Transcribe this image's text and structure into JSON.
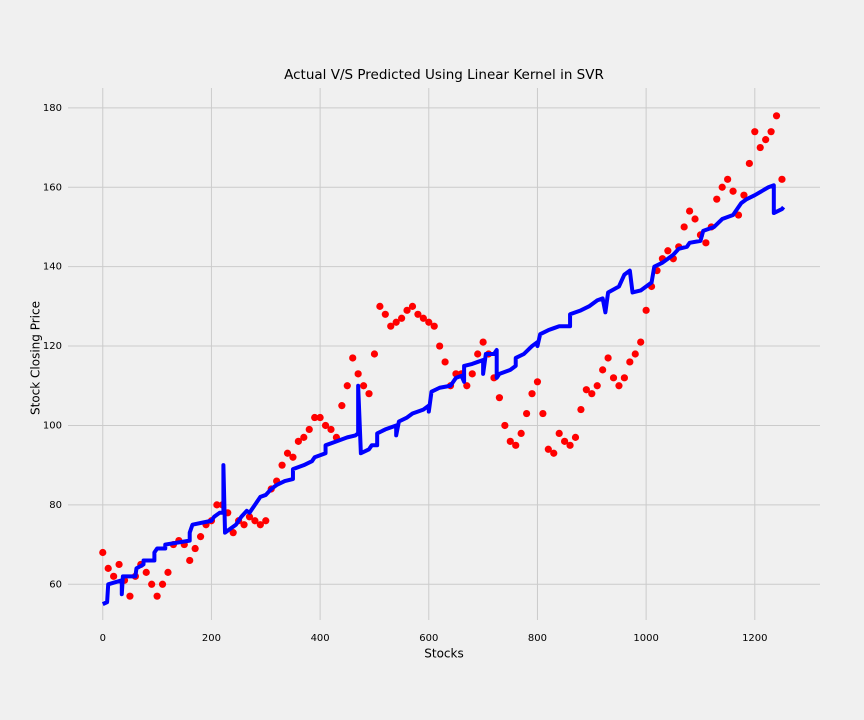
{
  "chart_data": {
    "type": "scatter",
    "title": "Actual V/S Predicted Using Linear Kernel in SVR",
    "x_label": "Stocks",
    "y_label": "Stock Closing Price",
    "xlim": [
      -64,
      1320
    ],
    "ylim": [
      51,
      185
    ],
    "xticks": [
      0,
      200,
      400,
      600,
      800,
      1000,
      1200
    ],
    "yticks": [
      60,
      80,
      100,
      120,
      140,
      160,
      180
    ],
    "grid": true,
    "series": [
      {
        "type": "scatter",
        "color": "#ff0000",
        "x": [
          0,
          10,
          20,
          30,
          40,
          50,
          60,
          70,
          80,
          90,
          100,
          110,
          120,
          130,
          140,
          150,
          160,
          170,
          180,
          190,
          200,
          210,
          220,
          230,
          240,
          250,
          260,
          270,
          280,
          290,
          300,
          310,
          320,
          330,
          340,
          350,
          360,
          370,
          380,
          390,
          400,
          410,
          420,
          430,
          440,
          450,
          460,
          470,
          480,
          490,
          500,
          510,
          520,
          530,
          540,
          550,
          560,
          570,
          580,
          590,
          600,
          610,
          620,
          630,
          640,
          650,
          660,
          670,
          680,
          690,
          700,
          710,
          720,
          730,
          740,
          750,
          760,
          770,
          780,
          790,
          800,
          810,
          820,
          830,
          840,
          850,
          860,
          870,
          880,
          890,
          900,
          910,
          920,
          930,
          940,
          950,
          960,
          970,
          980,
          990,
          1000,
          1010,
          1020,
          1030,
          1040,
          1050,
          1060,
          1070,
          1080,
          1090,
          1100,
          1110,
          1120,
          1130,
          1140,
          1150,
          1160,
          1170,
          1180,
          1190,
          1200,
          1210,
          1220,
          1230,
          1240,
          1250
        ],
        "values": [
          68,
          64,
          62,
          65,
          61,
          57,
          62,
          65,
          63,
          60,
          57,
          60,
          63,
          70,
          71,
          70,
          66,
          69,
          72,
          75,
          76,
          80,
          80,
          78,
          73,
          76,
          75,
          77,
          76,
          75,
          76,
          84,
          86,
          90,
          93,
          92,
          96,
          97,
          99,
          102,
          102,
          100,
          99,
          97,
          105,
          110,
          117,
          113,
          110,
          108,
          118,
          130,
          128,
          125,
          126,
          127,
          129,
          130,
          128,
          127,
          126,
          125,
          120,
          116,
          110,
          113,
          113,
          110,
          113,
          118,
          121,
          118,
          112,
          107,
          100,
          96,
          95,
          98,
          103,
          108,
          111,
          103,
          94,
          93,
          98,
          96,
          95,
          97,
          104,
          109,
          108,
          110,
          114,
          117,
          112,
          110,
          112,
          116,
          118,
          121,
          129,
          135,
          139,
          142,
          144,
          142,
          145,
          150,
          154,
          152,
          148,
          146,
          150,
          157,
          160,
          162,
          159,
          153,
          158,
          166,
          174,
          170,
          172,
          174,
          178,
          162
        ]
      },
      {
        "type": "line",
        "color": "#0000ff",
        "x": [
          0,
          8,
          10,
          35,
          35,
          37,
          60,
          62,
          75,
          75,
          95,
          95,
          100,
          115,
          115,
          160,
          160,
          165,
          200,
          205,
          215,
          222,
          222,
          225,
          230,
          245,
          255,
          265,
          270,
          280,
          290,
          300,
          310,
          320,
          335,
          350,
          350,
          370,
          385,
          390,
          400,
          410,
          410,
          430,
          440,
          450,
          465,
          470,
          470,
          475,
          490,
          495,
          505,
          505,
          520,
          540,
          540,
          545,
          560,
          570,
          590,
          600,
          600,
          605,
          620,
          640,
          650,
          660,
          665,
          665,
          680,
          690,
          700,
          700,
          705,
          720,
          725,
          725,
          730,
          750,
          760,
          760,
          775,
          790,
          800,
          800,
          805,
          820,
          830,
          840,
          860,
          860,
          880,
          895,
          910,
          920,
          925,
          930,
          950,
          960,
          970,
          975,
          990,
          1000,
          1010,
          1015,
          1030,
          1040,
          1050,
          1060,
          1075,
          1080,
          1100,
          1105,
          1125,
          1140,
          1160,
          1175,
          1185,
          1200,
          1225,
          1235,
          1235,
          1250,
          1253
        ],
        "values": [
          55,
          55.5,
          60,
          61,
          57.5,
          62,
          62,
          64,
          65,
          66,
          66,
          68,
          69,
          69,
          70,
          71,
          73,
          75,
          76,
          77,
          78,
          78,
          90,
          73,
          73.5,
          75,
          77,
          78.5,
          78,
          80,
          82,
          82.5,
          84,
          85,
          86,
          86.5,
          89,
          90,
          91,
          92,
          92.5,
          93,
          95,
          96,
          96.5,
          97,
          97.5,
          98,
          110,
          93,
          94,
          95,
          95,
          98,
          99,
          100,
          97.5,
          101,
          102,
          103,
          104,
          105,
          103.5,
          108.5,
          109.5,
          110,
          112,
          112.5,
          111,
          115,
          115.5,
          116,
          116.5,
          113,
          118,
          118,
          119,
          112,
          113,
          114,
          115,
          117,
          118,
          120,
          121,
          120,
          123,
          124,
          124.5,
          125,
          125,
          128,
          129,
          130,
          131.5,
          132,
          128.5,
          133.5,
          135,
          138,
          139,
          133.5,
          134,
          135,
          136,
          140,
          141,
          142,
          143,
          144.5,
          145,
          146,
          146.5,
          149,
          150,
          152,
          153,
          156,
          157,
          158,
          160,
          160.5,
          153.5,
          154.5,
          155
        ]
      }
    ]
  }
}
